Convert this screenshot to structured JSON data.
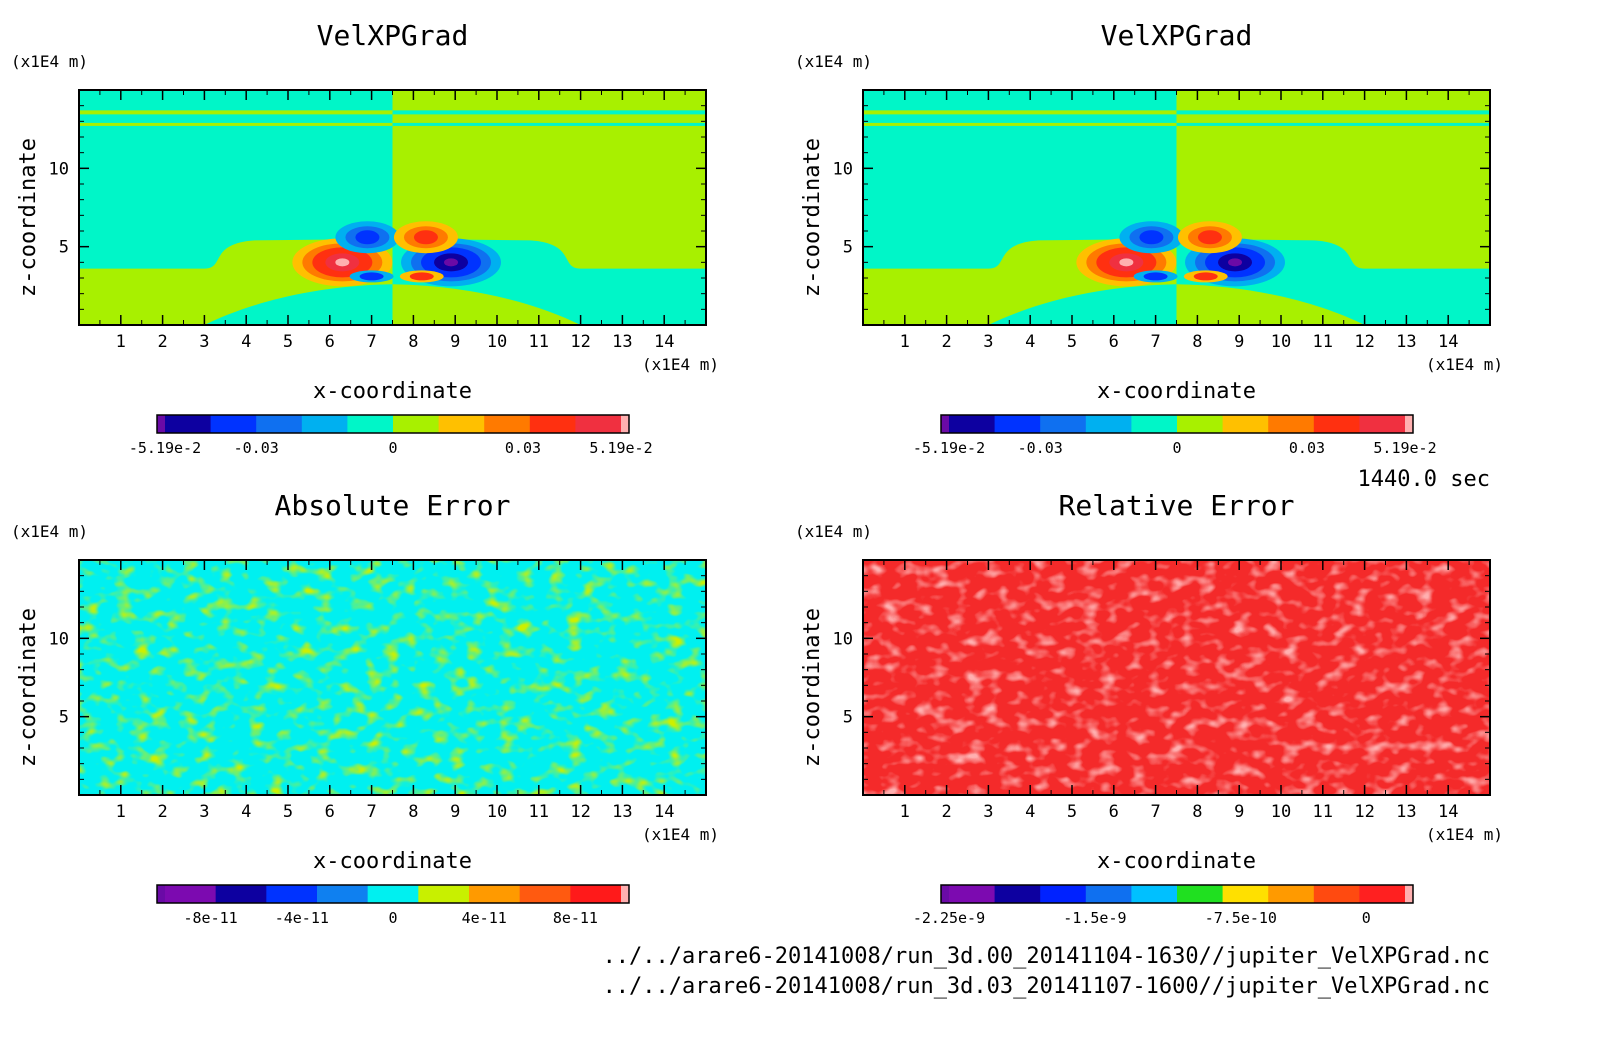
{
  "timestamp": "1440.0 sec",
  "file_paths": [
    "../../arare6-20141008/run_3d.00_20141104-1630//jupiter_VelXPGrad.nc",
    "../../arare6-20141008/run_3d.03_20141107-1600//jupiter_VelXPGrad.nc"
  ],
  "chart_data": [
    {
      "type": "heatmap",
      "field": "velocity",
      "title": "VelXPGrad",
      "xlabel": "x-coordinate",
      "ylabel": "z-coordinate",
      "x_unit": "(x1E4 m)",
      "z_unit": "(x1E4 m)",
      "xlim": [
        0,
        15
      ],
      "zlim": [
        0,
        15
      ],
      "x_ticks": [
        "1",
        "2",
        "3",
        "4",
        "5",
        "6",
        "7",
        "8",
        "9",
        "10",
        "11",
        "12",
        "13",
        "14"
      ],
      "z_ticks": [
        "5",
        "10"
      ],
      "colorbar": {
        "levels": 11,
        "colors": [
          "#6a0aa6",
          "#0d00a0",
          "#0033ff",
          "#0f70f0",
          "#00b0f0",
          "#00f6c8",
          "#a8f000",
          "#ffc000",
          "#ff7a00",
          "#ff3010",
          "#f03040",
          "#ffb0b0"
        ],
        "tick_labels": [
          "-5.19e-2",
          "-0.03",
          "0",
          "0.03",
          "5.19e-2"
        ]
      }
    },
    {
      "type": "heatmap",
      "field": "velocity",
      "title": "VelXPGrad",
      "xlabel": "x-coordinate",
      "ylabel": "z-coordinate",
      "x_unit": "(x1E4 m)",
      "z_unit": "(x1E4 m)",
      "xlim": [
        0,
        15
      ],
      "zlim": [
        0,
        15
      ],
      "x_ticks": [
        "1",
        "2",
        "3",
        "4",
        "5",
        "6",
        "7",
        "8",
        "9",
        "10",
        "11",
        "12",
        "13",
        "14"
      ],
      "z_ticks": [
        "5",
        "10"
      ],
      "colorbar": {
        "levels": 11,
        "colors": [
          "#6a0aa6",
          "#0d00a0",
          "#0033ff",
          "#0f70f0",
          "#00b0f0",
          "#00f6c8",
          "#a8f000",
          "#ffc000",
          "#ff7a00",
          "#ff3010",
          "#f03040",
          "#ffb0b0"
        ],
        "tick_labels": [
          "-5.19e-2",
          "-0.03",
          "0",
          "0.03",
          "5.19e-2"
        ]
      }
    },
    {
      "type": "heatmap",
      "field": "noise",
      "title": "Absolute Error",
      "xlabel": "x-coordinate",
      "ylabel": "z-coordinate",
      "x_unit": "(x1E4 m)",
      "z_unit": "(x1E4 m)",
      "xlim": [
        0,
        15
      ],
      "zlim": [
        0,
        15
      ],
      "x_ticks": [
        "1",
        "2",
        "3",
        "4",
        "5",
        "6",
        "7",
        "8",
        "9",
        "10",
        "11",
        "12",
        "13",
        "14"
      ],
      "z_ticks": [
        "5",
        "10"
      ],
      "field_colors": [
        "#00f0f0",
        "#cdf000"
      ],
      "colorbar": {
        "levels": 10,
        "colors": [
          "#6a0aa6",
          "#7c0ab0",
          "#0d00a0",
          "#0033ff",
          "#0f80f0",
          "#00f0f0",
          "#c8f000",
          "#ff9a00",
          "#ff5a10",
          "#ff1a1a",
          "#ffb0b0"
        ],
        "tick_labels": [
          "-8e-11",
          "-4e-11",
          "0",
          "4e-11",
          "8e-11"
        ]
      }
    },
    {
      "type": "heatmap",
      "field": "noise",
      "title": "Relative Error",
      "xlabel": "x-coordinate",
      "ylabel": "z-coordinate",
      "x_unit": "(x1E4 m)",
      "z_unit": "(x1E4 m)",
      "xlim": [
        0,
        15
      ],
      "zlim": [
        0,
        15
      ],
      "x_ticks": [
        "1",
        "2",
        "3",
        "4",
        "5",
        "6",
        "7",
        "8",
        "9",
        "10",
        "11",
        "12",
        "13",
        "14"
      ],
      "z_ticks": [
        "5",
        "10"
      ],
      "field_colors": [
        "#f42a2a",
        "#ffb0b0"
      ],
      "colorbar": {
        "levels": 10,
        "colors": [
          "#6a0aa6",
          "#7c0ab0",
          "#0d00a0",
          "#0022ff",
          "#0f70f0",
          "#00c0ff",
          "#20e020",
          "#ffe000",
          "#ff9a00",
          "#ff4a10",
          "#ff2020",
          "#ffb0b0"
        ],
        "tick_labels": [
          "-2.25e-9",
          "-1.5e-9",
          "-7.5e-10",
          "0"
        ]
      }
    }
  ]
}
